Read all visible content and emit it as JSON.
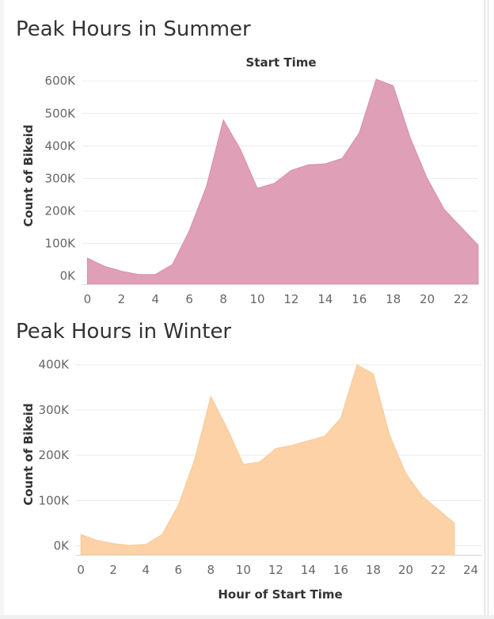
{
  "colors": {
    "summer_fill": "#df9fb7",
    "summer_stroke": "#d98fac",
    "winter_fill": "#fdd2a6",
    "winter_stroke": "#fbc996",
    "gridline": "#ececec",
    "axis_line": "#d6d6d6"
  },
  "summer": {
    "title": "Peak Hours in Summer"
  },
  "winter": {
    "title": "Peak Hours in Winter"
  },
  "chart_data": [
    {
      "type": "area",
      "title": "Peak Hours in Summer",
      "header": "Start Time",
      "ylabel": "Count of Bikeid",
      "xlabel": "",
      "x": [
        0,
        1,
        2,
        3,
        4,
        5,
        6,
        7,
        8,
        9,
        10,
        11,
        12,
        13,
        14,
        15,
        16,
        17,
        18,
        19,
        20,
        21,
        22,
        23
      ],
      "values": [
        55000,
        30000,
        15000,
        5000,
        5000,
        35000,
        140000,
        275000,
        480000,
        390000,
        270000,
        285000,
        325000,
        342000,
        345000,
        362000,
        440000,
        605000,
        585000,
        425000,
        300000,
        205000,
        150000,
        95000
      ],
      "xticks": [
        "0",
        "2",
        "4",
        "6",
        "8",
        "10",
        "12",
        "14",
        "16",
        "18",
        "20",
        "22"
      ],
      "yticks": [
        "0K",
        "100K",
        "200K",
        "300K",
        "400K",
        "500K",
        "600K"
      ],
      "xlim": [
        -0.3,
        23
      ],
      "ylim": [
        -25000,
        615000
      ],
      "grid": true
    },
    {
      "type": "area",
      "title": "Peak Hours in Winter",
      "ylabel": "Count of Bikeid",
      "xlabel": "Hour of Start Time",
      "x": [
        0,
        1,
        2,
        3,
        4,
        5,
        6,
        7,
        8,
        9,
        10,
        11,
        12,
        13,
        14,
        15,
        16,
        17,
        18,
        19,
        20,
        21,
        22,
        23
      ],
      "values": [
        25000,
        12000,
        5000,
        1000,
        3000,
        25000,
        90000,
        190000,
        330000,
        260000,
        180000,
        185000,
        215000,
        222000,
        232000,
        242000,
        282000,
        400000,
        380000,
        245000,
        160000,
        110000,
        80000,
        50000
      ],
      "xticks": [
        "0",
        "2",
        "4",
        "6",
        "8",
        "10",
        "12",
        "14",
        "16",
        "18",
        "20",
        "22",
        "24"
      ],
      "yticks": [
        "0K",
        "100K",
        "200K",
        "300K",
        "400K"
      ],
      "xlim": [
        -0.3,
        24.7
      ],
      "ylim": [
        -20000,
        410000
      ],
      "grid": true
    }
  ]
}
